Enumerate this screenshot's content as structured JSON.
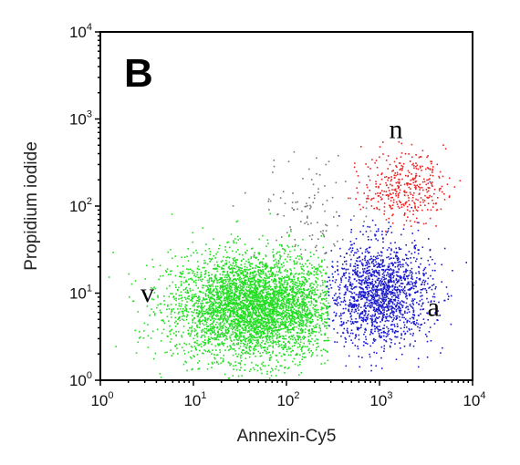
{
  "chart_data": {
    "type": "scatter",
    "panel_label": "B",
    "xlabel": "Annexin-Cy5",
    "ylabel": "Propidium iodide",
    "x_scale": "log",
    "y_scale": "log",
    "xlim": [
      1,
      10000
    ],
    "ylim": [
      1,
      10000
    ],
    "grid": false,
    "x_ticks": [
      {
        "base": "10",
        "exp": "0",
        "value": 1
      },
      {
        "base": "10",
        "exp": "1",
        "value": 10
      },
      {
        "base": "10",
        "exp": "2",
        "value": 100
      },
      {
        "base": "10",
        "exp": "3",
        "value": 1000
      },
      {
        "base": "10",
        "exp": "4",
        "value": 10000
      }
    ],
    "y_ticks": [
      {
        "base": "10",
        "exp": "0",
        "value": 1
      },
      {
        "base": "10",
        "exp": "1",
        "value": 10
      },
      {
        "base": "10",
        "exp": "2",
        "value": 100
      },
      {
        "base": "10",
        "exp": "3",
        "value": 1000
      },
      {
        "base": "10",
        "exp": "4",
        "value": 10000
      }
    ],
    "annotations": [
      {
        "text": "v",
        "x": 3.2,
        "y": 8
      },
      {
        "text": "n",
        "x": 1500,
        "y": 600
      },
      {
        "text": "a",
        "x": 3800,
        "y": 5.5
      }
    ],
    "series": [
      {
        "color": "#22dd22",
        "count": 4200,
        "center_x": 45,
        "center_y": 7,
        "spread_x_decades": 0.45,
        "spread_y_decades": 0.3,
        "max_x": 280
      },
      {
        "color": "#1a1acc",
        "count": 1600,
        "center_x": 1000,
        "center_y": 10,
        "spread_x_decades": 0.28,
        "spread_y_decades": 0.3,
        "min_x": 260
      },
      {
        "color": "#ee2222",
        "count": 380,
        "center_x": 1800,
        "center_y": 170,
        "spread_x_decades": 0.22,
        "spread_y_decades": 0.2
      },
      {
        "color": "#777777",
        "count": 110,
        "center_x": 200,
        "center_y": 90,
        "spread_x_decades": 0.3,
        "spread_y_decades": 0.3
      }
    ]
  }
}
